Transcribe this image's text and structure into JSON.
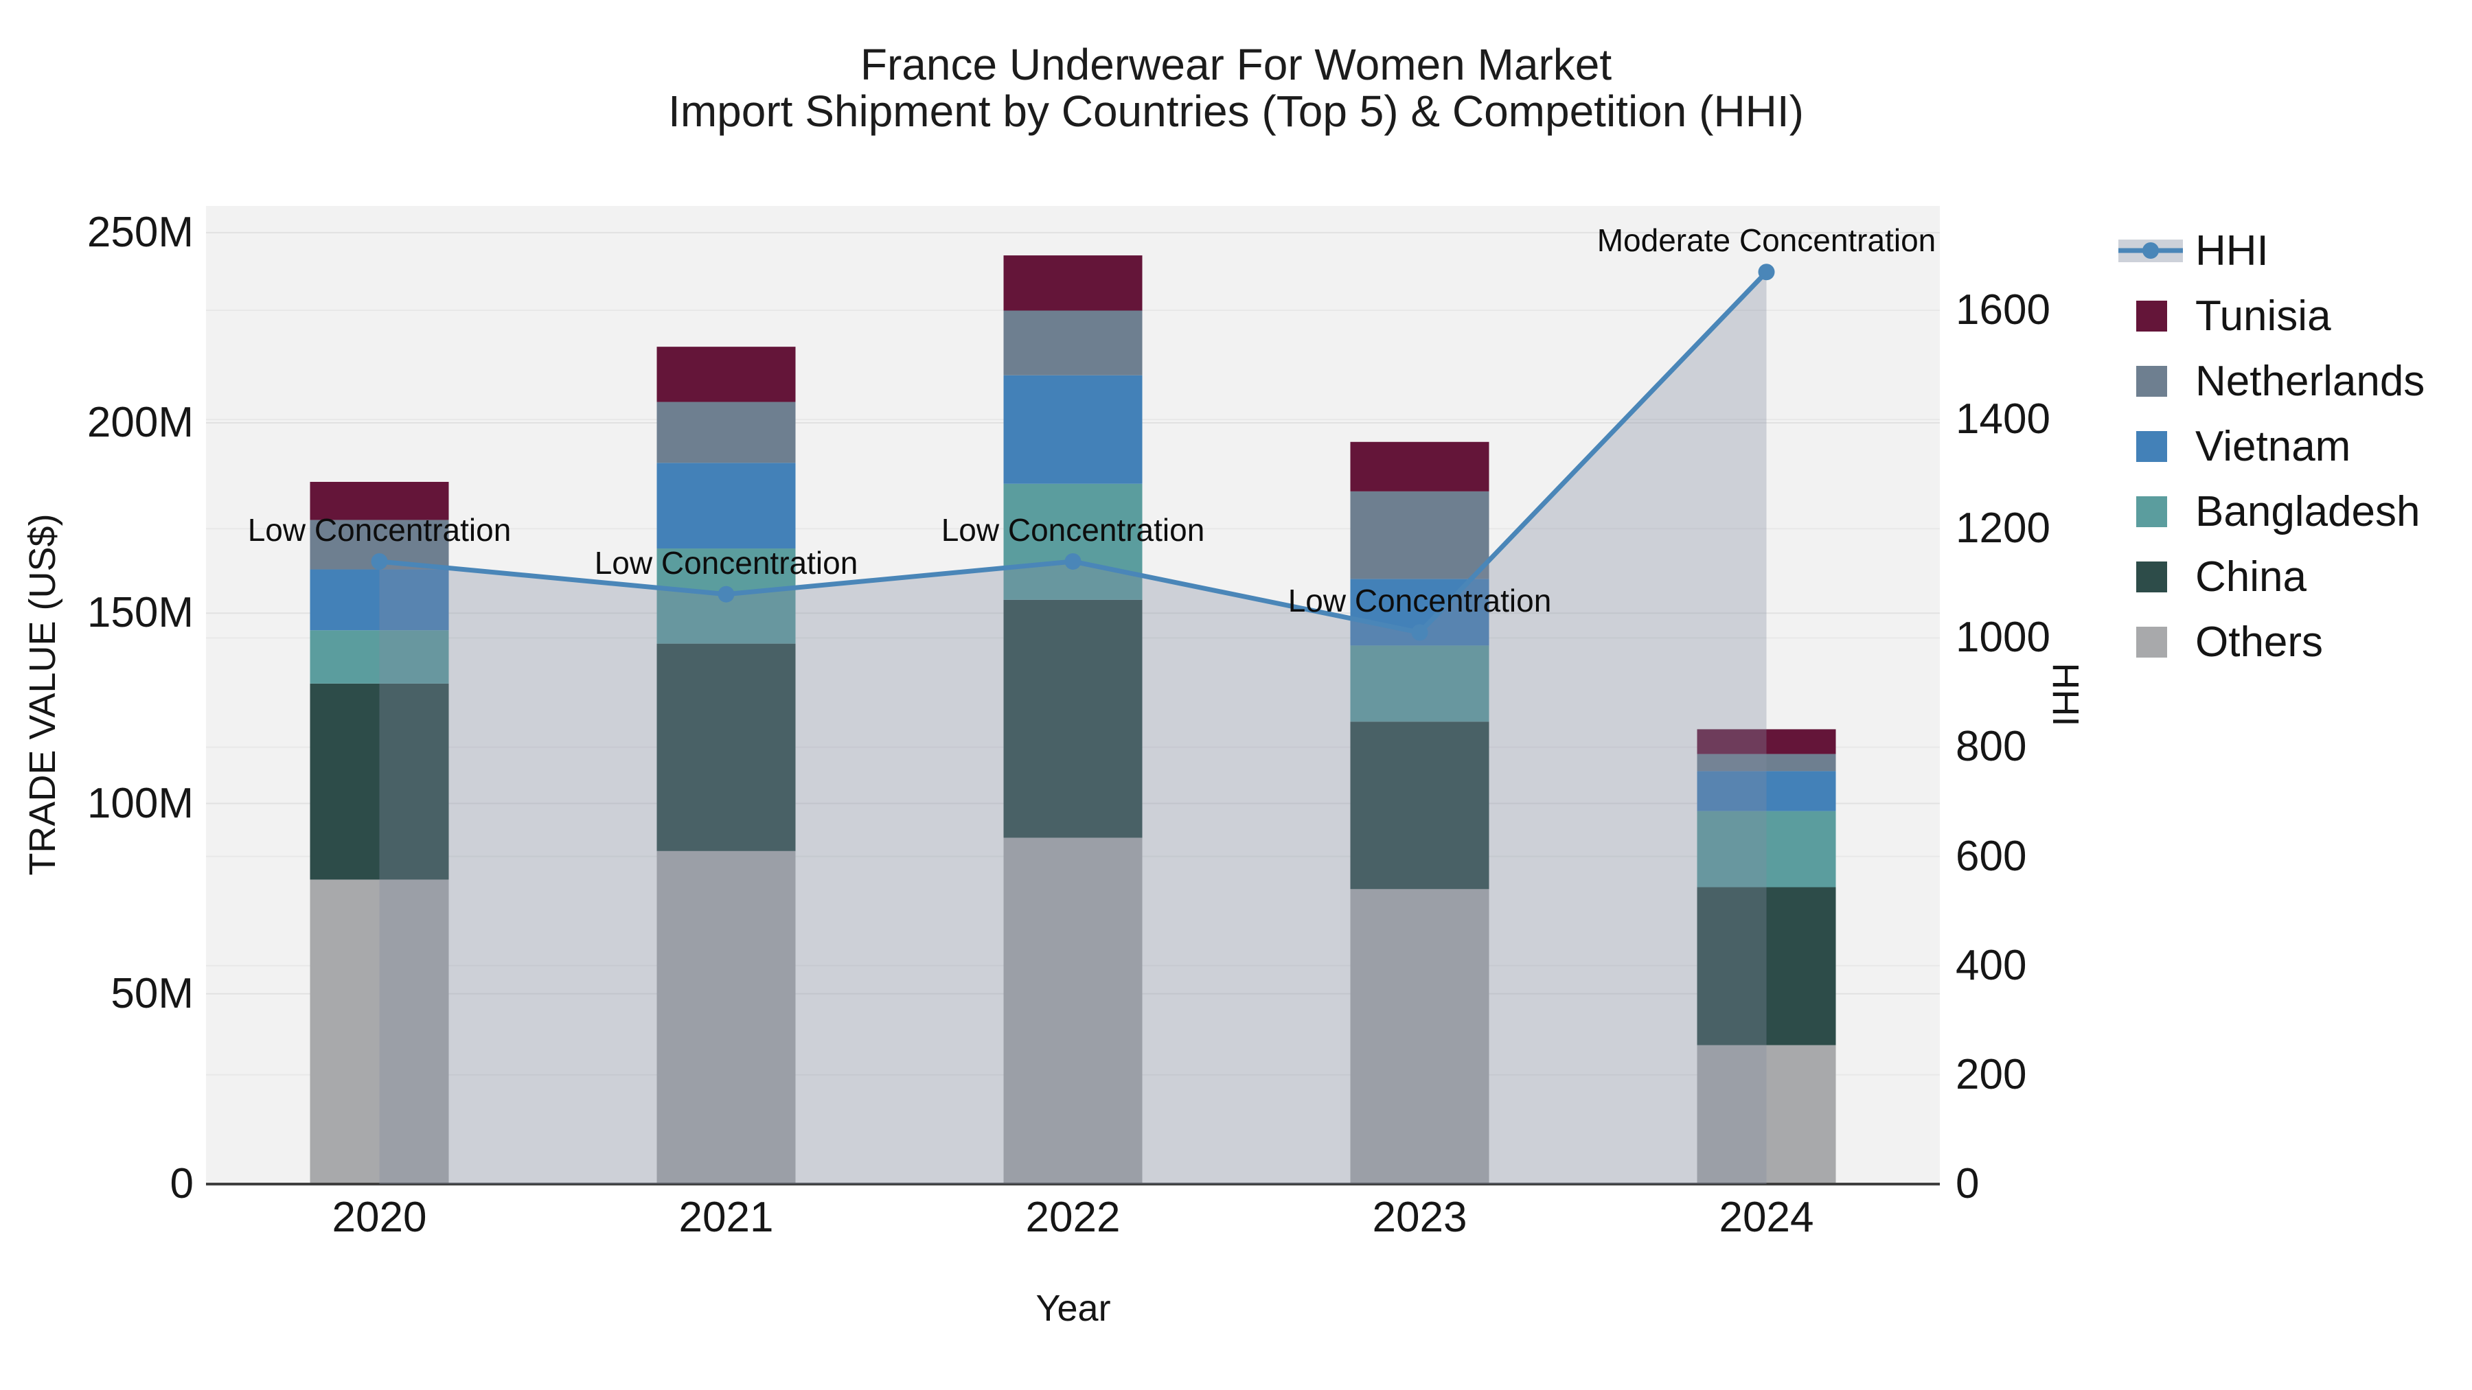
{
  "title": {
    "line1": "France Underwear For Women Market",
    "line2": "Import Shipment by Countries (Top 5) & Competition (HHI)"
  },
  "axes": {
    "left": {
      "title": "TRADE VALUE (US$)",
      "tick_labels": [
        "0",
        "50M",
        "100M",
        "150M",
        "200M",
        "250M"
      ],
      "tick_values": [
        0,
        50,
        100,
        150,
        200,
        250
      ]
    },
    "right": {
      "title": "HHI",
      "tick_labels": [
        "0",
        "200",
        "400",
        "600",
        "800",
        "1000",
        "1200",
        "1400",
        "1600"
      ],
      "tick_values": [
        0,
        200,
        400,
        600,
        800,
        1000,
        1200,
        1400,
        1600
      ]
    },
    "x": {
      "title": "Year"
    }
  },
  "legend": [
    {
      "label": "HHI",
      "type": "line",
      "color": "#4a86b8",
      "band": "rgba(130,140,160,0.40)"
    },
    {
      "label": "Tunisia",
      "type": "swatch",
      "color": "#641539"
    },
    {
      "label": "Netherlands",
      "type": "swatch",
      "color": "#6e7f90"
    },
    {
      "label": "Vietnam",
      "type": "swatch",
      "color": "#4381b8"
    },
    {
      "label": "Bangladesh",
      "type": "swatch",
      "color": "#5b9d9e"
    },
    {
      "label": "China",
      "type": "swatch",
      "color": "#2d4c49"
    },
    {
      "label": "Others",
      "type": "swatch",
      "color": "#a8a9ab"
    }
  ],
  "chart_data": {
    "type": "bar",
    "subtype": "stacked-bars-with-dual-axis-line",
    "title": "France Underwear For Women Market — Import Shipment by Countries (Top 5) & Competition (HHI)",
    "xlabel": "Year",
    "ylabel_left": "TRADE VALUE (US$)",
    "ylabel_right": "HHI",
    "categories": [
      "2020",
      "2021",
      "2022",
      "2023",
      "2024"
    ],
    "unit": "million US$",
    "series": [
      {
        "name": "Others",
        "color": "#a8a9ab",
        "values": [
          80.0,
          87.5,
          91.0,
          77.5,
          36.5
        ]
      },
      {
        "name": "China",
        "color": "#2d4c49",
        "values": [
          51.5,
          54.5,
          62.5,
          44.0,
          41.5
        ]
      },
      {
        "name": "Bangladesh",
        "color": "#5b9d9e",
        "values": [
          14.0,
          25.0,
          30.5,
          20.0,
          20.0
        ]
      },
      {
        "name": "Vietnam",
        "color": "#4381b8",
        "values": [
          16.0,
          22.5,
          28.5,
          17.5,
          10.5
        ]
      },
      {
        "name": "Netherlands",
        "color": "#6e7f90",
        "values": [
          13.0,
          16.0,
          17.0,
          23.0,
          4.5
        ]
      },
      {
        "name": "Tunisia",
        "color": "#641539",
        "values": [
          10.0,
          14.5,
          14.5,
          13.0,
          6.5
        ]
      }
    ],
    "bar_totals": [
      184.5,
      220.0,
      244.0,
      195.0,
      119.5
    ],
    "hhi_line": {
      "name": "HHI",
      "color": "#4a86b8",
      "area_fill": "rgba(130,140,160,0.33)",
      "values": [
        1140,
        1080,
        1140,
        1010,
        1670
      ]
    },
    "annotations": [
      {
        "category": "2020",
        "text": "Low Concentration"
      },
      {
        "category": "2021",
        "text": "Low Concentration"
      },
      {
        "category": "2022",
        "text": "Low Concentration"
      },
      {
        "category": "2023",
        "text": "Low Concentration"
      },
      {
        "category": "2024",
        "text": "Moderate Concentration"
      }
    ],
    "ylim_left": [
      0,
      257
    ],
    "ylim_right": [
      0,
      1791
    ],
    "grid": true,
    "legend_position": "right"
  },
  "colors": {
    "plot_bg": "#f2f2f2",
    "grid_left": "#e1e1e1",
    "grid_right": "#e8e8e8",
    "axis_line": "#3f3f3f",
    "text": "#111111"
  }
}
